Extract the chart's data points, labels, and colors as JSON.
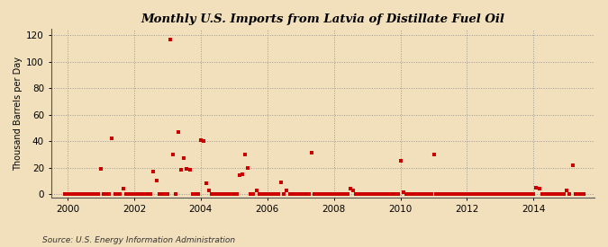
{
  "title": "Monthly U.S. Imports from Latvia of Distillate Fuel Oil",
  "ylabel": "Thousand Barrels per Day",
  "source": "Source: U.S. Energy Information Administration",
  "background_color": "#f2e0bc",
  "plot_background": "#f2e0bc",
  "marker_color": "#cc0000",
  "marker_size": 5,
  "xlim": [
    1999.5,
    2015.83
  ],
  "ylim": [
    -3,
    125
  ],
  "yticks": [
    0,
    20,
    40,
    60,
    80,
    100,
    120
  ],
  "xticks": [
    2000,
    2002,
    2004,
    2006,
    2008,
    2010,
    2012,
    2014
  ],
  "data_points": [
    [
      1999.92,
      0
    ],
    [
      2000.0,
      0
    ],
    [
      2000.08,
      0
    ],
    [
      2000.17,
      0
    ],
    [
      2000.25,
      0
    ],
    [
      2000.33,
      0
    ],
    [
      2000.42,
      0
    ],
    [
      2000.5,
      0
    ],
    [
      2000.58,
      0
    ],
    [
      2000.67,
      0
    ],
    [
      2000.75,
      0
    ],
    [
      2000.83,
      0
    ],
    [
      2000.92,
      0
    ],
    [
      2001.0,
      19
    ],
    [
      2001.08,
      0
    ],
    [
      2001.17,
      0
    ],
    [
      2001.25,
      0
    ],
    [
      2001.33,
      42
    ],
    [
      2001.42,
      0
    ],
    [
      2001.5,
      0
    ],
    [
      2001.58,
      0
    ],
    [
      2001.67,
      4
    ],
    [
      2001.75,
      0
    ],
    [
      2001.83,
      0
    ],
    [
      2001.92,
      0
    ],
    [
      2002.0,
      0
    ],
    [
      2002.08,
      0
    ],
    [
      2002.17,
      0
    ],
    [
      2002.25,
      0
    ],
    [
      2002.33,
      0
    ],
    [
      2002.42,
      0
    ],
    [
      2002.5,
      0
    ],
    [
      2002.58,
      17
    ],
    [
      2002.67,
      10
    ],
    [
      2002.75,
      0
    ],
    [
      2002.83,
      0
    ],
    [
      2002.92,
      0
    ],
    [
      2003.0,
      0
    ],
    [
      2003.08,
      117
    ],
    [
      2003.17,
      30
    ],
    [
      2003.25,
      0
    ],
    [
      2003.33,
      47
    ],
    [
      2003.42,
      18
    ],
    [
      2003.5,
      27
    ],
    [
      2003.58,
      19
    ],
    [
      2003.67,
      18
    ],
    [
      2003.75,
      0
    ],
    [
      2003.83,
      0
    ],
    [
      2003.92,
      0
    ],
    [
      2004.0,
      41
    ],
    [
      2004.08,
      40
    ],
    [
      2004.17,
      8
    ],
    [
      2004.25,
      3
    ],
    [
      2004.33,
      0
    ],
    [
      2004.42,
      0
    ],
    [
      2004.5,
      0
    ],
    [
      2004.58,
      0
    ],
    [
      2004.67,
      0
    ],
    [
      2004.75,
      0
    ],
    [
      2004.83,
      0
    ],
    [
      2004.92,
      0
    ],
    [
      2005.0,
      0
    ],
    [
      2005.08,
      0
    ],
    [
      2005.17,
      14
    ],
    [
      2005.25,
      15
    ],
    [
      2005.33,
      30
    ],
    [
      2005.42,
      20
    ],
    [
      2005.5,
      0
    ],
    [
      2005.58,
      0
    ],
    [
      2005.67,
      3
    ],
    [
      2005.75,
      0
    ],
    [
      2005.83,
      0
    ],
    [
      2005.92,
      0
    ],
    [
      2006.0,
      0
    ],
    [
      2006.08,
      0
    ],
    [
      2006.17,
      0
    ],
    [
      2006.25,
      0
    ],
    [
      2006.33,
      0
    ],
    [
      2006.42,
      9
    ],
    [
      2006.5,
      0
    ],
    [
      2006.58,
      3
    ],
    [
      2006.67,
      0
    ],
    [
      2006.75,
      0
    ],
    [
      2006.83,
      0
    ],
    [
      2006.92,
      0
    ],
    [
      2007.0,
      0
    ],
    [
      2007.08,
      0
    ],
    [
      2007.17,
      0
    ],
    [
      2007.25,
      0
    ],
    [
      2007.33,
      31
    ],
    [
      2007.42,
      0
    ],
    [
      2007.5,
      0
    ],
    [
      2007.58,
      0
    ],
    [
      2007.67,
      0
    ],
    [
      2007.75,
      0
    ],
    [
      2007.83,
      0
    ],
    [
      2007.92,
      0
    ],
    [
      2008.0,
      0
    ],
    [
      2008.08,
      0
    ],
    [
      2008.17,
      0
    ],
    [
      2008.25,
      0
    ],
    [
      2008.33,
      0
    ],
    [
      2008.42,
      0
    ],
    [
      2008.5,
      4
    ],
    [
      2008.58,
      3
    ],
    [
      2008.67,
      0
    ],
    [
      2008.75,
      0
    ],
    [
      2008.83,
      0
    ],
    [
      2008.92,
      0
    ],
    [
      2009.0,
      0
    ],
    [
      2009.08,
      0
    ],
    [
      2009.17,
      0
    ],
    [
      2009.25,
      0
    ],
    [
      2009.33,
      0
    ],
    [
      2009.42,
      0
    ],
    [
      2009.5,
      0
    ],
    [
      2009.58,
      0
    ],
    [
      2009.67,
      0
    ],
    [
      2009.75,
      0
    ],
    [
      2009.83,
      0
    ],
    [
      2009.92,
      0
    ],
    [
      2010.0,
      25
    ],
    [
      2010.08,
      1
    ],
    [
      2010.17,
      0
    ],
    [
      2010.25,
      0
    ],
    [
      2010.33,
      0
    ],
    [
      2010.42,
      0
    ],
    [
      2010.5,
      0
    ],
    [
      2010.58,
      0
    ],
    [
      2010.67,
      0
    ],
    [
      2010.75,
      0
    ],
    [
      2010.83,
      0
    ],
    [
      2010.92,
      0
    ],
    [
      2011.0,
      30
    ],
    [
      2011.08,
      0
    ],
    [
      2011.17,
      0
    ],
    [
      2011.25,
      0
    ],
    [
      2011.33,
      0
    ],
    [
      2011.42,
      0
    ],
    [
      2011.5,
      0
    ],
    [
      2011.58,
      0
    ],
    [
      2011.67,
      0
    ],
    [
      2011.75,
      0
    ],
    [
      2011.83,
      0
    ],
    [
      2011.92,
      0
    ],
    [
      2012.0,
      0
    ],
    [
      2012.08,
      0
    ],
    [
      2012.17,
      0
    ],
    [
      2012.25,
      0
    ],
    [
      2012.33,
      0
    ],
    [
      2012.42,
      0
    ],
    [
      2012.5,
      0
    ],
    [
      2012.58,
      0
    ],
    [
      2012.67,
      0
    ],
    [
      2012.75,
      0
    ],
    [
      2012.83,
      0
    ],
    [
      2012.92,
      0
    ],
    [
      2013.0,
      0
    ],
    [
      2013.08,
      0
    ],
    [
      2013.17,
      0
    ],
    [
      2013.25,
      0
    ],
    [
      2013.33,
      0
    ],
    [
      2013.42,
      0
    ],
    [
      2013.5,
      0
    ],
    [
      2013.58,
      0
    ],
    [
      2013.67,
      0
    ],
    [
      2013.75,
      0
    ],
    [
      2013.83,
      0
    ],
    [
      2013.92,
      0
    ],
    [
      2014.0,
      0
    ],
    [
      2014.08,
      5
    ],
    [
      2014.17,
      4
    ],
    [
      2014.25,
      0
    ],
    [
      2014.33,
      0
    ],
    [
      2014.42,
      0
    ],
    [
      2014.5,
      0
    ],
    [
      2014.58,
      0
    ],
    [
      2014.67,
      0
    ],
    [
      2014.75,
      0
    ],
    [
      2014.83,
      0
    ],
    [
      2014.92,
      0
    ],
    [
      2015.0,
      3
    ],
    [
      2015.08,
      0
    ],
    [
      2015.17,
      22
    ],
    [
      2015.25,
      0
    ],
    [
      2015.33,
      0
    ],
    [
      2015.42,
      0
    ],
    [
      2015.5,
      0
    ]
  ]
}
